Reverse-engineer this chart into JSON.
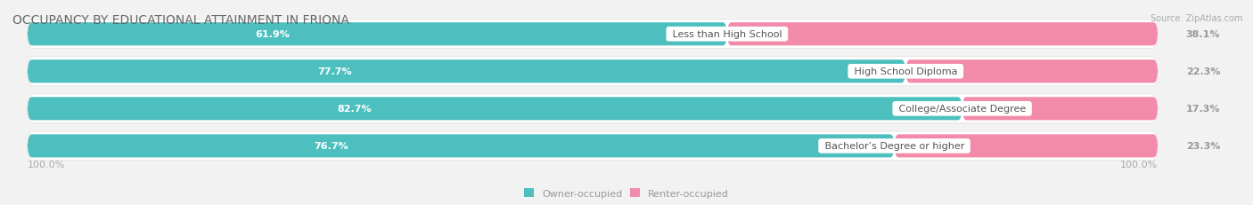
{
  "title": "OCCUPANCY BY EDUCATIONAL ATTAINMENT IN FRIONA",
  "source": "Source: ZipAtlas.com",
  "categories": [
    "Less than High School",
    "High School Diploma",
    "College/Associate Degree",
    "Bachelor’s Degree or higher"
  ],
  "owner_pct": [
    61.9,
    77.7,
    82.7,
    76.7
  ],
  "renter_pct": [
    38.1,
    22.3,
    17.3,
    23.3
  ],
  "owner_color": "#4dbfbf",
  "renter_color": "#f28baa",
  "bg_color": "#f2f2f2",
  "pill_color": "#ffffff",
  "pill_edge_color": "#e0e0e0",
  "title_color": "#666666",
  "label_color": "#555555",
  "value_color_owner": "#ffffff",
  "value_color_renter": "#999999",
  "axis_label_color": "#aaaaaa",
  "legend_label_color": "#999999",
  "source_color": "#aaaaaa",
  "title_fontsize": 10,
  "label_fontsize": 8,
  "value_fontsize": 8,
  "legend_fontsize": 8,
  "axis_label_fontsize": 8,
  "left_pct_label": "100.0%",
  "right_pct_label": "100.0%"
}
